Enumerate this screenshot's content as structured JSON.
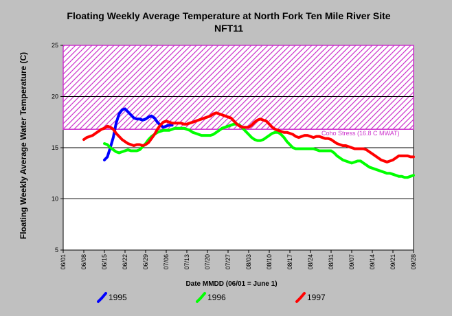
{
  "chart_data": {
    "type": "line",
    "title": "Floating Weekly Average Temperature at North Fork Ten Mile River Site",
    "subtitle": "NFT11",
    "xlabel": "Date MMDD (06/01 = June 1)",
    "ylabel": "Floating Weekly Average Water Temperature (C)",
    "ylim": [
      5,
      25
    ],
    "yticks": [
      5,
      10,
      15,
      20,
      25
    ],
    "xlim": [
      "06/01",
      "09/28"
    ],
    "xticks": [
      "06/01",
      "06/08",
      "06/15",
      "06/22",
      "06/29",
      "07/06",
      "07/13",
      "07/20",
      "07/27",
      "08/03",
      "08/10",
      "08/17",
      "08/24",
      "08/31",
      "09/07",
      "09/14",
      "09/21",
      "09/28"
    ],
    "grid": "horizontal at 10, 15, 20",
    "legend_position": "bottom",
    "threshold": {
      "label": "Coho Stress (16.8 C MWAT)",
      "value": 16.8,
      "band_top": 25,
      "color": "#cc33cc"
    },
    "series": [
      {
        "name": "1995",
        "color": "#0000ff",
        "points": [
          [
            "06/15",
            13.8
          ],
          [
            "06/16",
            14.1
          ],
          [
            "06/17",
            15.0
          ],
          [
            "06/18",
            16.0
          ],
          [
            "06/19",
            17.4
          ],
          [
            "06/20",
            18.3
          ],
          [
            "06/21",
            18.7
          ],
          [
            "06/22",
            18.8
          ],
          [
            "06/23",
            18.5
          ],
          [
            "06/24",
            18.2
          ],
          [
            "06/25",
            17.9
          ],
          [
            "06/26",
            17.8
          ],
          [
            "06/27",
            17.8
          ],
          [
            "06/28",
            17.7
          ],
          [
            "06/29",
            17.8
          ],
          [
            "06/30",
            18.0
          ],
          [
            "07/01",
            18.1
          ],
          [
            "07/02",
            17.9
          ],
          [
            "07/03",
            17.5
          ],
          [
            "07/04",
            17.2
          ],
          [
            "07/05",
            17.0
          ],
          [
            "07/06",
            17.1
          ],
          [
            "07/07",
            17.2
          ],
          [
            "07/08",
            17.2
          ]
        ]
      },
      {
        "name": "1996",
        "color": "#00ff00",
        "points": [
          [
            "06/15",
            15.4
          ],
          [
            "06/16",
            15.3
          ],
          [
            "06/17",
            15.0
          ],
          [
            "06/18",
            14.8
          ],
          [
            "06/19",
            14.6
          ],
          [
            "06/20",
            14.5
          ],
          [
            "06/21",
            14.6
          ],
          [
            "06/22",
            14.7
          ],
          [
            "06/23",
            14.8
          ],
          [
            "06/24",
            14.7
          ],
          [
            "06/25",
            14.7
          ],
          [
            "06/26",
            14.7
          ],
          [
            "06/27",
            14.8
          ],
          [
            "06/28",
            15.1
          ],
          [
            "06/29",
            15.4
          ],
          [
            "06/30",
            15.8
          ],
          [
            "07/01",
            16.1
          ],
          [
            "07/02",
            16.3
          ],
          [
            "07/03",
            16.5
          ],
          [
            "07/04",
            16.6
          ],
          [
            "07/05",
            16.7
          ],
          [
            "07/06",
            16.7
          ],
          [
            "07/07",
            16.7
          ],
          [
            "07/08",
            16.8
          ],
          [
            "07/09",
            16.9
          ],
          [
            "07/10",
            16.9
          ],
          [
            "07/11",
            16.9
          ],
          [
            "07/12",
            16.9
          ],
          [
            "07/13",
            16.8
          ],
          [
            "07/14",
            16.7
          ],
          [
            "07/15",
            16.5
          ],
          [
            "07/16",
            16.4
          ],
          [
            "07/17",
            16.3
          ],
          [
            "07/18",
            16.2
          ],
          [
            "07/19",
            16.2
          ],
          [
            "07/20",
            16.2
          ],
          [
            "07/21",
            16.2
          ],
          [
            "07/22",
            16.3
          ],
          [
            "07/23",
            16.5
          ],
          [
            "07/24",
            16.7
          ],
          [
            "07/25",
            16.9
          ],
          [
            "07/26",
            17.0
          ],
          [
            "07/27",
            17.1
          ],
          [
            "07/28",
            17.2
          ],
          [
            "07/29",
            17.3
          ],
          [
            "07/30",
            17.3
          ],
          [
            "07/31",
            17.2
          ],
          [
            "08/01",
            16.9
          ],
          [
            "08/02",
            16.6
          ],
          [
            "08/03",
            16.3
          ],
          [
            "08/04",
            16.0
          ],
          [
            "08/05",
            15.8
          ],
          [
            "08/06",
            15.7
          ],
          [
            "08/07",
            15.7
          ],
          [
            "08/08",
            15.8
          ],
          [
            "08/09",
            16.0
          ],
          [
            "08/10",
            16.2
          ],
          [
            "08/11",
            16.4
          ],
          [
            "08/12",
            16.5
          ],
          [
            "08/13",
            16.5
          ],
          [
            "08/14",
            16.3
          ],
          [
            "08/15",
            16.0
          ],
          [
            "08/16",
            15.6
          ],
          [
            "08/17",
            15.3
          ],
          [
            "08/18",
            15.0
          ],
          [
            "08/19",
            14.9
          ],
          [
            "08/20",
            14.9
          ],
          [
            "08/21",
            14.9
          ],
          [
            "08/22",
            14.9
          ],
          [
            "08/23",
            14.9
          ],
          [
            "08/24",
            14.9
          ],
          [
            "08/25",
            14.9
          ],
          [
            "08/26",
            14.8
          ],
          [
            "08/27",
            14.7
          ],
          [
            "08/28",
            14.7
          ],
          [
            "08/29",
            14.7
          ],
          [
            "08/30",
            14.7
          ],
          [
            "08/31",
            14.7
          ],
          [
            "09/01",
            14.5
          ],
          [
            "09/02",
            14.2
          ],
          [
            "09/03",
            14.0
          ],
          [
            "09/04",
            13.8
          ],
          [
            "09/05",
            13.7
          ],
          [
            "09/06",
            13.6
          ],
          [
            "09/07",
            13.5
          ],
          [
            "09/08",
            13.6
          ],
          [
            "09/09",
            13.7
          ],
          [
            "09/10",
            13.7
          ],
          [
            "09/11",
            13.5
          ],
          [
            "09/12",
            13.3
          ],
          [
            "09/13",
            13.1
          ],
          [
            "09/14",
            13.0
          ],
          [
            "09/15",
            12.9
          ],
          [
            "09/16",
            12.8
          ],
          [
            "09/17",
            12.7
          ],
          [
            "09/18",
            12.6
          ],
          [
            "09/19",
            12.5
          ],
          [
            "09/20",
            12.5
          ],
          [
            "09/21",
            12.4
          ],
          [
            "09/22",
            12.3
          ],
          [
            "09/23",
            12.2
          ],
          [
            "09/24",
            12.2
          ],
          [
            "09/25",
            12.1
          ],
          [
            "09/26",
            12.1
          ],
          [
            "09/27",
            12.2
          ],
          [
            "09/28",
            12.3
          ]
        ]
      },
      {
        "name": "1997",
        "color": "#ff0000",
        "points": [
          [
            "06/08",
            15.8
          ],
          [
            "06/09",
            16.0
          ],
          [
            "06/10",
            16.1
          ],
          [
            "06/11",
            16.2
          ],
          [
            "06/12",
            16.4
          ],
          [
            "06/13",
            16.6
          ],
          [
            "06/14",
            16.8
          ],
          [
            "06/15",
            16.9
          ],
          [
            "06/16",
            17.1
          ],
          [
            "06/17",
            17.0
          ],
          [
            "06/18",
            16.8
          ],
          [
            "06/19",
            16.4
          ],
          [
            "06/20",
            16.1
          ],
          [
            "06/21",
            15.8
          ],
          [
            "06/22",
            15.6
          ],
          [
            "06/23",
            15.4
          ],
          [
            "06/24",
            15.3
          ],
          [
            "06/25",
            15.2
          ],
          [
            "06/26",
            15.3
          ],
          [
            "06/27",
            15.3
          ],
          [
            "06/28",
            15.2
          ],
          [
            "06/29",
            15.3
          ],
          [
            "06/30",
            15.5
          ],
          [
            "07/01",
            15.9
          ],
          [
            "07/02",
            16.3
          ],
          [
            "07/03",
            16.8
          ],
          [
            "07/04",
            17.2
          ],
          [
            "07/05",
            17.5
          ],
          [
            "07/06",
            17.6
          ],
          [
            "07/07",
            17.5
          ],
          [
            "07/08",
            17.4
          ],
          [
            "07/09",
            17.4
          ],
          [
            "07/10",
            17.4
          ],
          [
            "07/11",
            17.4
          ],
          [
            "07/12",
            17.3
          ],
          [
            "07/13",
            17.3
          ],
          [
            "07/14",
            17.4
          ],
          [
            "07/15",
            17.5
          ],
          [
            "07/16",
            17.6
          ],
          [
            "07/17",
            17.7
          ],
          [
            "07/18",
            17.8
          ],
          [
            "07/19",
            17.9
          ],
          [
            "07/20",
            18.0
          ],
          [
            "07/21",
            18.1
          ],
          [
            "07/22",
            18.3
          ],
          [
            "07/23",
            18.4
          ],
          [
            "07/24",
            18.3
          ],
          [
            "07/25",
            18.2
          ],
          [
            "07/26",
            18.1
          ],
          [
            "07/27",
            18.0
          ],
          [
            "07/28",
            17.9
          ],
          [
            "07/29",
            17.6
          ],
          [
            "07/30",
            17.3
          ],
          [
            "07/31",
            17.1
          ],
          [
            "08/01",
            17.0
          ],
          [
            "08/02",
            17.0
          ],
          [
            "08/03",
            17.0
          ],
          [
            "08/04",
            17.2
          ],
          [
            "08/05",
            17.5
          ],
          [
            "08/06",
            17.7
          ],
          [
            "08/07",
            17.8
          ],
          [
            "08/08",
            17.7
          ],
          [
            "08/09",
            17.6
          ],
          [
            "08/10",
            17.3
          ],
          [
            "08/11",
            17.0
          ],
          [
            "08/12",
            16.8
          ],
          [
            "08/13",
            16.7
          ],
          [
            "08/14",
            16.6
          ],
          [
            "08/15",
            16.5
          ],
          [
            "08/16",
            16.5
          ],
          [
            "08/17",
            16.4
          ],
          [
            "08/18",
            16.3
          ],
          [
            "08/19",
            16.1
          ],
          [
            "08/20",
            16.0
          ],
          [
            "08/21",
            16.1
          ],
          [
            "08/22",
            16.2
          ],
          [
            "08/23",
            16.2
          ],
          [
            "08/24",
            16.1
          ],
          [
            "08/25",
            16.0
          ],
          [
            "08/26",
            16.1
          ],
          [
            "08/27",
            16.1
          ],
          [
            "08/28",
            16.0
          ],
          [
            "08/29",
            15.9
          ],
          [
            "08/30",
            15.9
          ],
          [
            "08/31",
            15.8
          ],
          [
            "09/01",
            15.6
          ],
          [
            "09/02",
            15.4
          ],
          [
            "09/03",
            15.3
          ],
          [
            "09/04",
            15.2
          ],
          [
            "09/05",
            15.2
          ],
          [
            "09/06",
            15.1
          ],
          [
            "09/07",
            15.0
          ],
          [
            "09/08",
            14.9
          ],
          [
            "09/09",
            14.9
          ],
          [
            "09/10",
            14.9
          ],
          [
            "09/11",
            14.9
          ],
          [
            "09/12",
            14.8
          ],
          [
            "09/13",
            14.6
          ],
          [
            "09/14",
            14.4
          ],
          [
            "09/15",
            14.2
          ],
          [
            "09/16",
            14.0
          ],
          [
            "09/17",
            13.8
          ],
          [
            "09/18",
            13.7
          ],
          [
            "09/19",
            13.6
          ],
          [
            "09/20",
            13.7
          ],
          [
            "09/21",
            13.8
          ],
          [
            "09/22",
            14.0
          ],
          [
            "09/23",
            14.2
          ],
          [
            "09/24",
            14.2
          ],
          [
            "09/25",
            14.2
          ],
          [
            "09/26",
            14.2
          ],
          [
            "09/27",
            14.1
          ],
          [
            "09/28",
            14.1
          ]
        ]
      }
    ]
  }
}
